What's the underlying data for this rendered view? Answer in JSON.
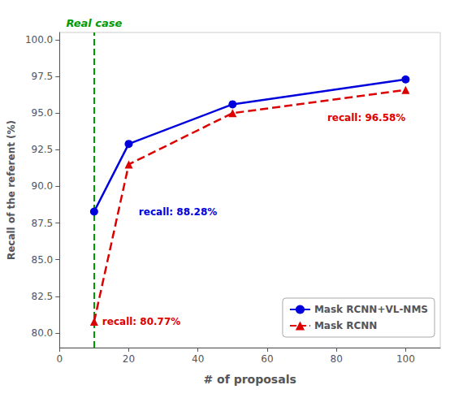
{
  "chart_data": {
    "type": "line",
    "x": [
      10,
      20,
      50,
      100
    ],
    "series": [
      {
        "name": "Mask RCNN+VL-NMS",
        "color": "#0000dd",
        "values": [
          88.28,
          92.9,
          95.6,
          97.3
        ],
        "marker": "circle",
        "line_style": "solid"
      },
      {
        "name": "Mask RCNN",
        "color": "#dd0000",
        "values": [
          80.77,
          91.5,
          95.0,
          96.58
        ],
        "marker": "triangle",
        "line_style": "dashed"
      }
    ],
    "xlabel": "# of proposals",
    "ylabel": "Recall of the referent (%)",
    "xlim": [
      0,
      110
    ],
    "ylim": [
      79.0,
      100.5
    ],
    "xticks": [
      0,
      20,
      40,
      60,
      80,
      100
    ],
    "yticks": [
      {
        "value": 80,
        "label": "80.0"
      },
      82.5,
      {
        "value": 85,
        "label": "85.0"
      },
      87.5,
      {
        "value": 90,
        "label": "90.0"
      },
      92.5,
      {
        "value": 95,
        "label": "95.0"
      },
      97.5,
      {
        "value": 100,
        "label": "100.0"
      }
    ],
    "vline": {
      "x": 10,
      "color": "#009900",
      "line_style": "dashed",
      "label": "Real case"
    },
    "annotations": [
      {
        "text": "recall: 88.28%",
        "series": "Mask RCNN+VL-NMS",
        "x": 10
      },
      {
        "text": "recall: 80.77%",
        "series": "Mask RCNN",
        "x": 10
      },
      {
        "text": "recall: 96.58%",
        "series": "Mask RCNN",
        "x": 100
      }
    ],
    "grid": false,
    "legend": "lower right"
  }
}
